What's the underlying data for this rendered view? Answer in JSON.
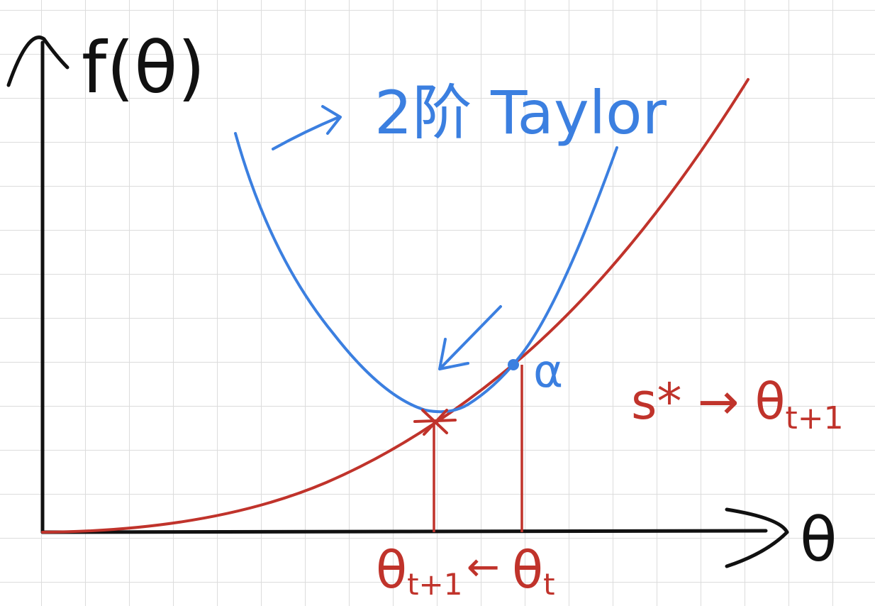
{
  "axes": {
    "y_label": "f(θ)",
    "x_label": "θ"
  },
  "annotations": {
    "taylor_label": "2阶 Taylor",
    "alpha_label": "α",
    "step_label": "s* → θ",
    "step_subscript": "t+1",
    "theta_next": "θ",
    "theta_next_sub": "t+1",
    "arrow_left": "←",
    "theta_current": "θ",
    "theta_current_sub": "t"
  },
  "colors": {
    "axis": "#111111",
    "function": "#c0332b",
    "taylor": "#3b7fe0",
    "grid": "#dcdcdc"
  }
}
